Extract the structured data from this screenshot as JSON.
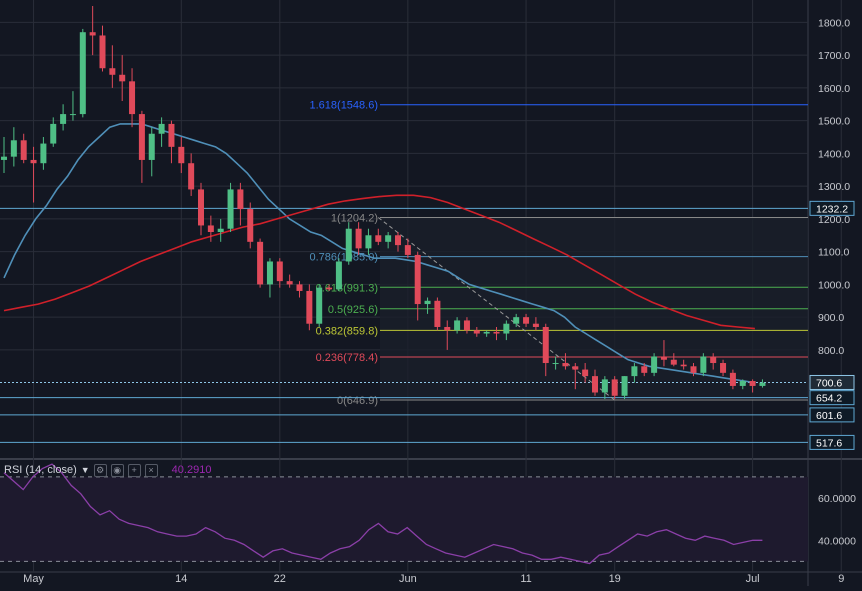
{
  "colors": {
    "background": "#131722",
    "bull": "#26a69a",
    "bullFill": "#4fbf86",
    "bear": "#e04a5a",
    "ma_fast": "#4f8fb8",
    "ma_slow": "#d0202a",
    "rsi": "#8b3fa8",
    "grid": "#2a2e39",
    "fib0": "#888888",
    "fib236": "#e04a5a",
    "fib382": "#bcc635",
    "fib50": "#4caf50",
    "fib618": "#4caf50",
    "fib786": "#4f8fb8",
    "fib1": "#888888",
    "fib1618": "#2962ff",
    "hline": "#5fa8d3"
  },
  "rsi_panel": {
    "label": "RSI (14, close)",
    "value": "40.2910",
    "icons": [
      "settings-icon",
      "eye-icon",
      "plus-icon",
      "close-icon"
    ]
  },
  "chart_data": [
    {
      "type": "candlestick",
      "x_tick_labels": [
        "May",
        "14",
        "22",
        "Jun",
        "11",
        "19",
        "Jul",
        "9"
      ],
      "x_tick_index": [
        3,
        18,
        28,
        41,
        53,
        62,
        76,
        85
      ],
      "y_ticks": [
        "1800.0",
        "1700.0",
        "1600.0",
        "1500.0",
        "1400.0",
        "1300.0",
        "1200.0",
        "1100.0",
        "1000.0",
        "900.0",
        "800.0"
      ],
      "ylim": [
        470,
        1850
      ],
      "candles": [
        {
          "o": 1380,
          "h": 1450,
          "l": 1340,
          "c": 1390
        },
        {
          "o": 1390,
          "h": 1480,
          "l": 1360,
          "c": 1440
        },
        {
          "o": 1440,
          "h": 1460,
          "l": 1370,
          "c": 1380
        },
        {
          "o": 1380,
          "h": 1420,
          "l": 1250,
          "c": 1370
        },
        {
          "o": 1370,
          "h": 1450,
          "l": 1350,
          "c": 1430
        },
        {
          "o": 1430,
          "h": 1510,
          "l": 1420,
          "c": 1490
        },
        {
          "o": 1490,
          "h": 1550,
          "l": 1470,
          "c": 1520
        },
        {
          "o": 1520,
          "h": 1590,
          "l": 1500,
          "c": 1520
        },
        {
          "o": 1520,
          "h": 1780,
          "l": 1510,
          "c": 1770
        },
        {
          "o": 1770,
          "h": 1850,
          "l": 1700,
          "c": 1760
        },
        {
          "o": 1760,
          "h": 1790,
          "l": 1650,
          "c": 1660
        },
        {
          "o": 1660,
          "h": 1730,
          "l": 1600,
          "c": 1640
        },
        {
          "o": 1640,
          "h": 1700,
          "l": 1560,
          "c": 1620
        },
        {
          "o": 1620,
          "h": 1660,
          "l": 1480,
          "c": 1520
        },
        {
          "o": 1520,
          "h": 1530,
          "l": 1310,
          "c": 1380
        },
        {
          "o": 1380,
          "h": 1480,
          "l": 1330,
          "c": 1460
        },
        {
          "o": 1460,
          "h": 1510,
          "l": 1420,
          "c": 1490
        },
        {
          "o": 1490,
          "h": 1500,
          "l": 1370,
          "c": 1420
        },
        {
          "o": 1420,
          "h": 1450,
          "l": 1340,
          "c": 1370
        },
        {
          "o": 1370,
          "h": 1400,
          "l": 1270,
          "c": 1290
        },
        {
          "o": 1290,
          "h": 1310,
          "l": 1150,
          "c": 1180
        },
        {
          "o": 1180,
          "h": 1210,
          "l": 1130,
          "c": 1160
        },
        {
          "o": 1160,
          "h": 1200,
          "l": 1130,
          "c": 1170
        },
        {
          "o": 1170,
          "h": 1310,
          "l": 1160,
          "c": 1290
        },
        {
          "o": 1290,
          "h": 1310,
          "l": 1180,
          "c": 1230
        },
        {
          "o": 1230,
          "h": 1250,
          "l": 1110,
          "c": 1130
        },
        {
          "o": 1130,
          "h": 1140,
          "l": 990,
          "c": 1000
        },
        {
          "o": 1000,
          "h": 1080,
          "l": 960,
          "c": 1070
        },
        {
          "o": 1070,
          "h": 1080,
          "l": 990,
          "c": 1010
        },
        {
          "o": 1010,
          "h": 1030,
          "l": 990,
          "c": 1000
        },
        {
          "o": 1000,
          "h": 1010,
          "l": 960,
          "c": 980
        },
        {
          "o": 980,
          "h": 1000,
          "l": 860,
          "c": 880
        },
        {
          "o": 880,
          "h": 1000,
          "l": 870,
          "c": 990
        },
        {
          "o": 990,
          "h": 1000,
          "l": 980,
          "c": 985
        },
        {
          "o": 985,
          "h": 1080,
          "l": 980,
          "c": 1070
        },
        {
          "o": 1070,
          "h": 1190,
          "l": 1060,
          "c": 1170
        },
        {
          "o": 1170,
          "h": 1190,
          "l": 1090,
          "c": 1110
        },
        {
          "o": 1110,
          "h": 1170,
          "l": 1090,
          "c": 1150
        },
        {
          "o": 1150,
          "h": 1170,
          "l": 1120,
          "c": 1130
        },
        {
          "o": 1130,
          "h": 1160,
          "l": 1110,
          "c": 1150
        },
        {
          "o": 1150,
          "h": 1160,
          "l": 1100,
          "c": 1120
        },
        {
          "o": 1120,
          "h": 1140,
          "l": 1080,
          "c": 1090
        },
        {
          "o": 1090,
          "h": 1100,
          "l": 890,
          "c": 940
        },
        {
          "o": 940,
          "h": 960,
          "l": 910,
          "c": 950
        },
        {
          "o": 950,
          "h": 960,
          "l": 860,
          "c": 870
        },
        {
          "o": 870,
          "h": 890,
          "l": 800,
          "c": 860
        },
        {
          "o": 860,
          "h": 900,
          "l": 850,
          "c": 890
        },
        {
          "o": 890,
          "h": 900,
          "l": 850,
          "c": 860
        },
        {
          "o": 860,
          "h": 870,
          "l": 840,
          "c": 850
        },
        {
          "o": 850,
          "h": 860,
          "l": 840,
          "c": 855
        },
        {
          "o": 855,
          "h": 870,
          "l": 830,
          "c": 850
        },
        {
          "o": 850,
          "h": 890,
          "l": 830,
          "c": 880
        },
        {
          "o": 880,
          "h": 910,
          "l": 870,
          "c": 900
        },
        {
          "o": 900,
          "h": 910,
          "l": 870,
          "c": 880
        },
        {
          "o": 880,
          "h": 900,
          "l": 860,
          "c": 870
        },
        {
          "o": 870,
          "h": 880,
          "l": 720,
          "c": 760
        },
        {
          "o": 760,
          "h": 780,
          "l": 740,
          "c": 760
        },
        {
          "o": 760,
          "h": 790,
          "l": 740,
          "c": 750
        },
        {
          "o": 750,
          "h": 760,
          "l": 680,
          "c": 740
        },
        {
          "o": 740,
          "h": 760,
          "l": 700,
          "c": 720
        },
        {
          "o": 720,
          "h": 740,
          "l": 660,
          "c": 670
        },
        {
          "o": 670,
          "h": 720,
          "l": 650,
          "c": 710
        },
        {
          "o": 710,
          "h": 720,
          "l": 650,
          "c": 660
        },
        {
          "o": 660,
          "h": 720,
          "l": 650,
          "c": 720
        },
        {
          "o": 720,
          "h": 760,
          "l": 700,
          "c": 750
        },
        {
          "o": 750,
          "h": 760,
          "l": 720,
          "c": 730
        },
        {
          "o": 730,
          "h": 790,
          "l": 720,
          "c": 780
        },
        {
          "o": 780,
          "h": 830,
          "l": 750,
          "c": 770
        },
        {
          "o": 770,
          "h": 790,
          "l": 750,
          "c": 755
        },
        {
          "o": 755,
          "h": 770,
          "l": 740,
          "c": 750
        },
        {
          "o": 750,
          "h": 760,
          "l": 720,
          "c": 730
        },
        {
          "o": 730,
          "h": 790,
          "l": 720,
          "c": 780
        },
        {
          "o": 780,
          "h": 790,
          "l": 740,
          "c": 760
        },
        {
          "o": 760,
          "h": 770,
          "l": 720,
          "c": 730
        },
        {
          "o": 730,
          "h": 740,
          "l": 680,
          "c": 690
        },
        {
          "o": 690,
          "h": 710,
          "l": 680,
          "c": 705
        },
        {
          "o": 705,
          "h": 710,
          "l": 670,
          "c": 690
        },
        {
          "o": 690,
          "h": 710,
          "l": 685,
          "c": 700
        }
      ],
      "ma_fast": [
        1020,
        1090,
        1150,
        1200,
        1240,
        1290,
        1330,
        1380,
        1420,
        1450,
        1480,
        1490,
        1490,
        1490,
        1480,
        1470,
        1460,
        1450,
        1440,
        1430,
        1420,
        1400,
        1370,
        1340,
        1300,
        1260,
        1230,
        1200,
        1180,
        1160,
        1150,
        1130,
        1110,
        1100,
        1090,
        1080,
        1080,
        1080,
        1075,
        1070,
        1060,
        1050,
        1040,
        1020,
        1000,
        990,
        980,
        970,
        960,
        950,
        940,
        930,
        920,
        900,
        870,
        850,
        830,
        810,
        790,
        770,
        760,
        750,
        745,
        740,
        735,
        730,
        725,
        720,
        715,
        710,
        705,
        700
      ],
      "ma_slow": [
        920,
        930,
        940,
        955,
        975,
        995,
        1020,
        1045,
        1070,
        1090,
        1110,
        1130,
        1145,
        1160,
        1175,
        1185,
        1200,
        1215,
        1230,
        1245,
        1255,
        1262,
        1268,
        1272,
        1272,
        1265,
        1250,
        1230,
        1210,
        1190,
        1165,
        1140,
        1115,
        1090,
        1060,
        1030,
        1000,
        970,
        945,
        925,
        905,
        890,
        875,
        870,
        865
      ],
      "fib_levels": [
        {
          "label": "0(646.9)",
          "value": 646.9
        },
        {
          "label": "0.236(778.4)",
          "value": 778.4
        },
        {
          "label": "0.382(859.8)",
          "value": 859.8
        },
        {
          "label": "0.5(925.6)",
          "value": 925.6
        },
        {
          "label": "0.618(991.3)",
          "value": 991.3
        },
        {
          "label": "0.786(1085.0)",
          "value": 1085.0
        },
        {
          "label": "1(1204.2)",
          "value": 1204.2
        },
        {
          "label": "1.618(1548.6)",
          "value": 1548.6
        }
      ],
      "horizontal_lines": [
        {
          "label": "1232.2",
          "value": 1232.2
        },
        {
          "label": "700.6",
          "value": 700.6
        },
        {
          "label": "654.2",
          "value": 654.2
        },
        {
          "label": "601.6",
          "value": 601.6
        },
        {
          "label": "517.6",
          "value": 517.6
        }
      ]
    },
    {
      "type": "line",
      "title": "RSI (14, close)",
      "y_ticks": [
        "60.0000",
        "40.0000"
      ],
      "ylim": [
        25,
        78
      ],
      "levels": [
        70,
        30
      ],
      "values": [
        72,
        68,
        64,
        70,
        74,
        76,
        72,
        66,
        62,
        56,
        52,
        54,
        50,
        48,
        47,
        46,
        44,
        43,
        42,
        42,
        43,
        46,
        44,
        41,
        40,
        38,
        35,
        32,
        35,
        36,
        34,
        33,
        32,
        31,
        34,
        36,
        37,
        40,
        45,
        48,
        44,
        43,
        46,
        42,
        38,
        36,
        34,
        33,
        32,
        34,
        36,
        38,
        37,
        36,
        34,
        33,
        31,
        31,
        32,
        31,
        30,
        29,
        33,
        34,
        37,
        40,
        43,
        42,
        44,
        45,
        43,
        41,
        40,
        42,
        41,
        40,
        38,
        39,
        40,
        40
      ]
    }
  ]
}
